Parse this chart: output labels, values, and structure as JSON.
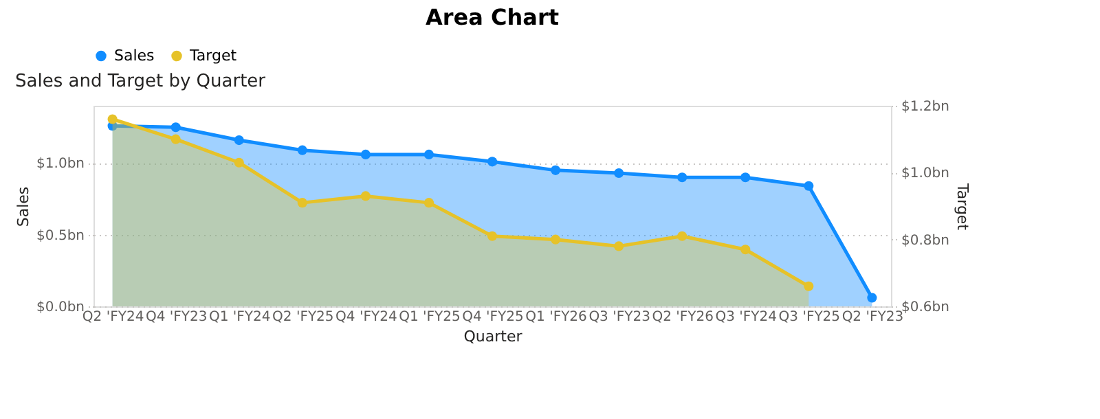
{
  "chart_data": {
    "type": "area",
    "title": "Area Chart",
    "subtitle": "Sales and Target by Quarter",
    "xlabel": "Quarter",
    "ylabel": "Sales",
    "y2label": "Target",
    "categories": [
      "Q2 'FY24",
      "Q4 'FY23",
      "Q1 'FY24",
      "Q2 'FY25",
      "Q4 'FY24",
      "Q1 'FY25",
      "Q4 'FY25",
      "Q1 'FY26",
      "Q3 'FY23",
      "Q2 'FY26",
      "Q3 'FY24",
      "Q3 'FY25",
      "Q2 'FY23"
    ],
    "series": [
      {
        "name": "Sales",
        "color": "#118dff",
        "values": [
          1.26,
          1.25,
          1.16,
          1.09,
          1.06,
          1.06,
          1.01,
          0.95,
          0.93,
          0.9,
          0.9,
          0.84,
          0.06
        ]
      },
      {
        "name": "Target",
        "color": "#e6c229",
        "axis": "y2",
        "values": [
          1.16,
          1.1,
          1.03,
          0.91,
          0.93,
          0.91,
          0.81,
          0.8,
          0.78,
          0.81,
          0.77,
          0.66,
          null
        ]
      }
    ],
    "ylim": [
      0,
      1.4
    ],
    "yticks": [
      {
        "value": 0,
        "label": "$0.0bn"
      },
      {
        "value": 0.5,
        "label": "$0.5bn"
      },
      {
        "value": 1.0,
        "label": "$1.0bn"
      }
    ],
    "y2lim": [
      0.6,
      1.2
    ],
    "y2ticks": [
      {
        "value": 0.6,
        "label": "$0.6bn"
      },
      {
        "value": 0.8,
        "label": "$0.8bn"
      },
      {
        "value": 1.0,
        "label": "$1.0bn"
      },
      {
        "value": 1.2,
        "label": "$1.2bn"
      }
    ],
    "grid": "y",
    "legend": "top left",
    "marker": "circle",
    "line_style": "solid"
  }
}
